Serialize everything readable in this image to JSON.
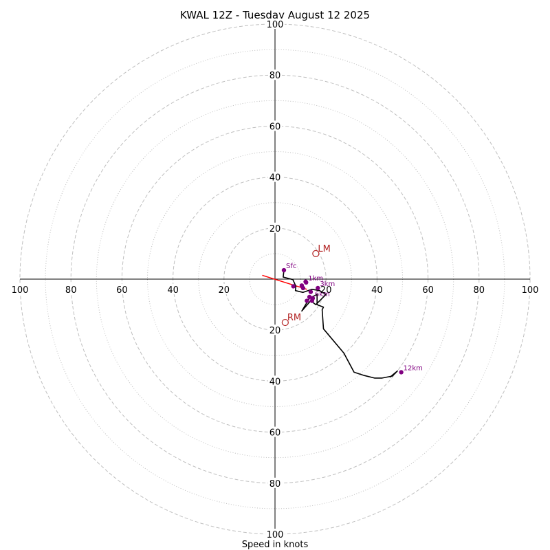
{
  "chart_data": {
    "type": "hodograph",
    "title": "KWAL 12Z - Tuesday August 12 2025",
    "xlabel": "Speed in knots",
    "max_speed": 100,
    "ring_major_step": 20,
    "ring_minor_step": 10,
    "tick_labels": [
      "20",
      "40",
      "60",
      "80",
      "100"
    ],
    "colors": {
      "trace": "#000000",
      "height_marker": "#800080",
      "motion": "#b22222",
      "shear_vector": "#ff0000",
      "ring": "#bfbfbf",
      "axis": "#000000"
    },
    "trace": [
      [
        3.5,
        3.5
      ],
      [
        3.2,
        0.8
      ],
      [
        7.0,
        -0.2
      ],
      [
        8.2,
        -2.8
      ],
      [
        8.0,
        -4.5
      ],
      [
        11.0,
        -5.2
      ],
      [
        14.5,
        -4.0
      ],
      [
        17.5,
        -4.5
      ],
      [
        20.0,
        -6.0
      ],
      [
        18.0,
        -8.0
      ],
      [
        16.0,
        -10.0
      ],
      [
        14.0,
        -8.5
      ],
      [
        10.5,
        -12.5
      ],
      [
        13.5,
        -7.5
      ],
      [
        16.5,
        -6.0
      ],
      [
        16.5,
        -10.0
      ],
      [
        19.0,
        -11.0
      ],
      [
        18.5,
        -12.0
      ],
      [
        19.0,
        -19.5
      ],
      [
        27.0,
        -29.0
      ],
      [
        31.0,
        -36.5
      ],
      [
        35.0,
        -37.8
      ],
      [
        39.0,
        -38.8
      ],
      [
        42.0,
        -38.8
      ],
      [
        46.0,
        -38.0
      ],
      [
        48.0,
        -36.0
      ],
      [
        45.0,
        -38.5
      ]
    ],
    "height_markers": [
      {
        "label": "Sfc",
        "u": 3.5,
        "v": 3.5
      },
      {
        "label": "",
        "u": 7.2,
        "v": -2.8
      },
      {
        "label": "",
        "u": 10.5,
        "v": -2.5
      },
      {
        "label": "",
        "u": 12.0,
        "v": -1.0
      },
      {
        "label": "",
        "u": 11.0,
        "v": -3.5
      },
      {
        "label": "",
        "u": 14.0,
        "v": -5.0
      },
      {
        "label": "",
        "u": 13.5,
        "v": -7.0
      },
      {
        "label": "",
        "u": 12.5,
        "v": -8.5
      },
      {
        "label": "",
        "u": 14.5,
        "v": -8.5
      },
      {
        "label": "1km",
        "u": 12.2,
        "v": -1.3
      },
      {
        "label": "3km",
        "u": 16.8,
        "v": -3.5
      },
      {
        "label": "6km",
        "u": 14.8,
        "v": -7.5
      },
      {
        "label": "12km",
        "u": 49.5,
        "v": -36.5
      }
    ],
    "storm_motion": [
      {
        "label": "LM",
        "u": 16.0,
        "v": 10.0
      },
      {
        "label": "RM",
        "u": 4.0,
        "v": -17.0
      }
    ],
    "shear_vector": {
      "u": [
        -5.0,
        12.5
      ],
      "v": [
        1.5,
        -4.0
      ]
    }
  }
}
